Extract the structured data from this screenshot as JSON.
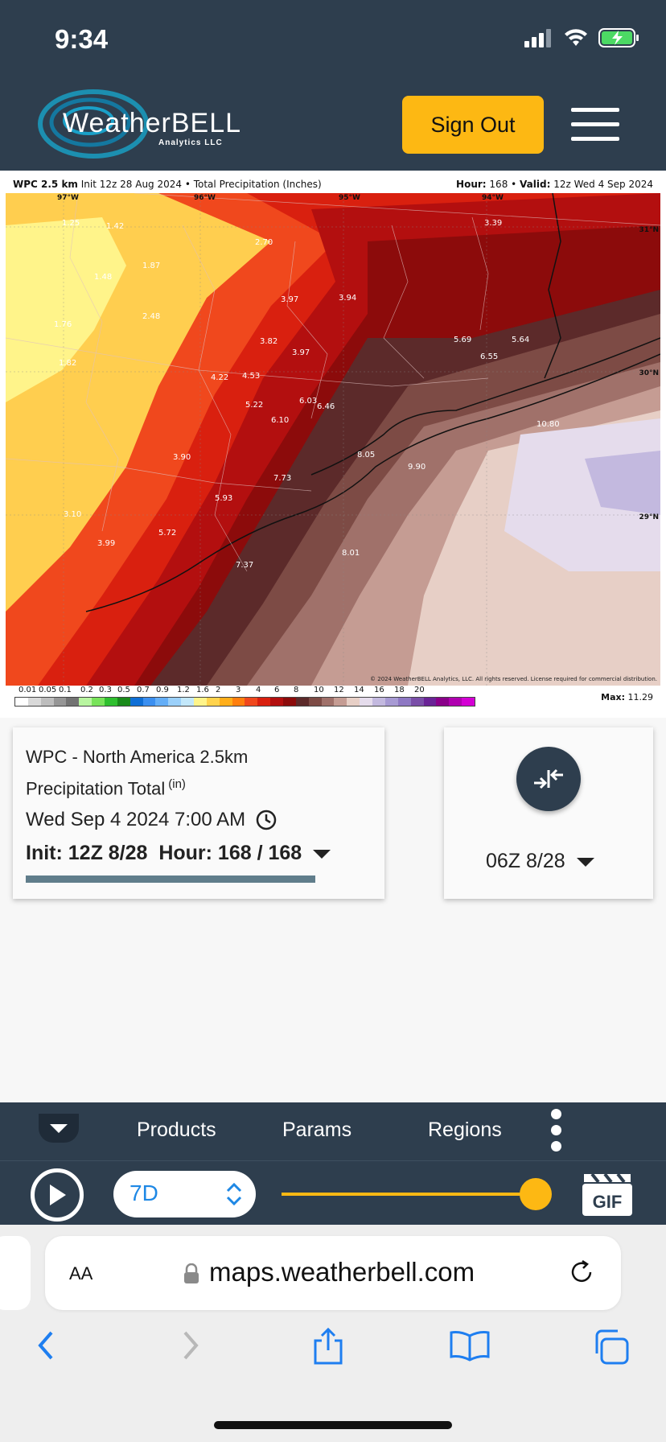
{
  "status_bar": {
    "time": "9:34"
  },
  "header": {
    "logo_text": "WeatherBELL",
    "logo_sub": "Analytics LLC",
    "sign_out_label": "Sign Out",
    "accent_color": "#fdb813",
    "bar_color": "#2e3e4e"
  },
  "map": {
    "title_model": "WPC 2.5 km",
    "title_rest": "Init 12z 28 Aug 2024 • Total Precipitation (Inches)",
    "hour_label": "Hour:",
    "hour_value": "168",
    "valid_label": "Valid:",
    "valid_value": "12z Wed 4 Sep 2024",
    "lon_labels": [
      "97°W",
      "96°W",
      "95°W",
      "94°W"
    ],
    "lat_labels": [
      "31°N",
      "30°N",
      "29°N"
    ],
    "copyright": "© 2024 WeatherBELL Analytics, LLC. All rights reserved. License required for commercial distribution.",
    "max_label": "Max:",
    "max_value": "11.29",
    "point_values": [
      {
        "v": "1.25"
      },
      {
        "v": "1.42"
      },
      {
        "v": "1.48"
      },
      {
        "v": "1.87"
      },
      {
        "v": "1.76"
      },
      {
        "v": "1.82"
      },
      {
        "v": "2.48"
      },
      {
        "v": "2.70"
      },
      {
        "v": "3.97"
      },
      {
        "v": "3.94"
      },
      {
        "v": "3.82"
      },
      {
        "v": "3.97"
      },
      {
        "v": "3.39"
      },
      {
        "v": "5.69"
      },
      {
        "v": "5.64"
      },
      {
        "v": "6.55"
      },
      {
        "v": "4.22"
      },
      {
        "v": "4.53"
      },
      {
        "v": "5.22"
      },
      {
        "v": "6.03"
      },
      {
        "v": "6.46"
      },
      {
        "v": "6.10"
      },
      {
        "v": "10.80"
      },
      {
        "v": "3.90"
      },
      {
        "v": "8.05"
      },
      {
        "v": "9.90"
      },
      {
        "v": "7.73"
      },
      {
        "v": "5.93"
      },
      {
        "v": "3.10"
      },
      {
        "v": "5.72"
      },
      {
        "v": "3.99"
      },
      {
        "v": "8.01"
      },
      {
        "v": "7.37"
      }
    ],
    "legend_ticks": [
      "0.01",
      "0.05",
      "0.1",
      "0.2",
      "0.3",
      "0.5",
      "0.7",
      "0.9",
      "1.2",
      "1.6",
      "2",
      "3",
      "4",
      "6",
      "8",
      "10",
      "12",
      "14",
      "16",
      "18",
      "20"
    ],
    "legend_colors": [
      "#ffffff",
      "#d9d9d9",
      "#bdbdbd",
      "#969696",
      "#737373",
      "#b8f5a0",
      "#78e35a",
      "#2fbf2f",
      "#1a8a1a",
      "#0f6fd6",
      "#3b8ff0",
      "#64aef7",
      "#9bd0fa",
      "#c3e8fb",
      "#fff48a",
      "#ffd34d",
      "#ffae1a",
      "#ff7f0e",
      "#f0481d",
      "#d9200f",
      "#b30f0f",
      "#8c0b0b",
      "#5c2a2a",
      "#7d4b45",
      "#a0716a",
      "#c59c93",
      "#e7cfc6",
      "#e5dcec",
      "#c3b9df",
      "#a79ad3",
      "#8e78c3",
      "#7a4ea8",
      "#6a2396",
      "#8a008a",
      "#b000b0",
      "#d400d4"
    ]
  },
  "info_card": {
    "model_name": "WPC - North America 2.5km",
    "param_name": "Precipitation Total",
    "param_unit": "(in)",
    "valid_time": "Wed Sep 4 2024 7:00 AM",
    "init_hour": "Init: 12Z 8/28  Hour: 168 / 168",
    "progress_fraction": 1.0
  },
  "compare_card": {
    "run_label": "06Z 8/28"
  },
  "bottom_nav": {
    "items": [
      "Products",
      "Params",
      "Regions"
    ]
  },
  "controls": {
    "range_value": "7D",
    "slider_fraction": 1.0,
    "gif_label": "GIF"
  },
  "browser": {
    "aa_label": "AA",
    "url": "maps.weatherbell.com"
  }
}
